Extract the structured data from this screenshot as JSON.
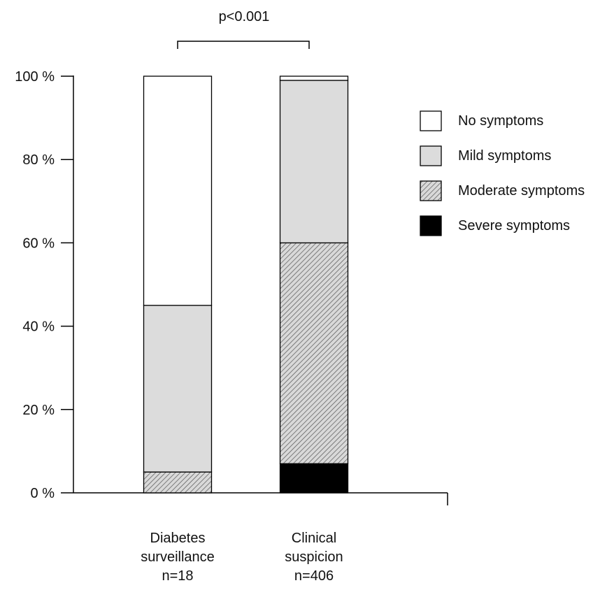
{
  "chart_data": {
    "type": "bar",
    "stacked": true,
    "categories": [
      [
        "Diabetes",
        "surveillance",
        "n=18"
      ],
      [
        "Clinical",
        "suspicion",
        "n=406"
      ]
    ],
    "series": [
      {
        "name": "Severe symptoms",
        "values": [
          0,
          7
        ],
        "fill": "black"
      },
      {
        "name": "Moderate symptoms",
        "values": [
          5,
          53
        ],
        "fill": "hatch"
      },
      {
        "name": "Mild symptoms",
        "values": [
          40,
          39
        ],
        "fill": "lightgray"
      },
      {
        "name": "No symptoms",
        "values": [
          55,
          1
        ],
        "fill": "white"
      }
    ],
    "legend_order": [
      "No symptoms",
      "Mild symptoms",
      "Moderate symptoms",
      "Severe symptoms"
    ],
    "yticks": [
      "0 %",
      "20 %",
      "40 %",
      "60 %",
      "80 %",
      "100 %"
    ],
    "ylim": [
      0,
      100
    ],
    "grid": false,
    "legend_position": "right",
    "annotation": "p<0.001",
    "colors": {
      "lightgray": "#dcdcdc",
      "black": "#000000",
      "white": "#ffffff",
      "hatch_bg": "#d9d9d9",
      "hatch_line": "#555555"
    }
  }
}
